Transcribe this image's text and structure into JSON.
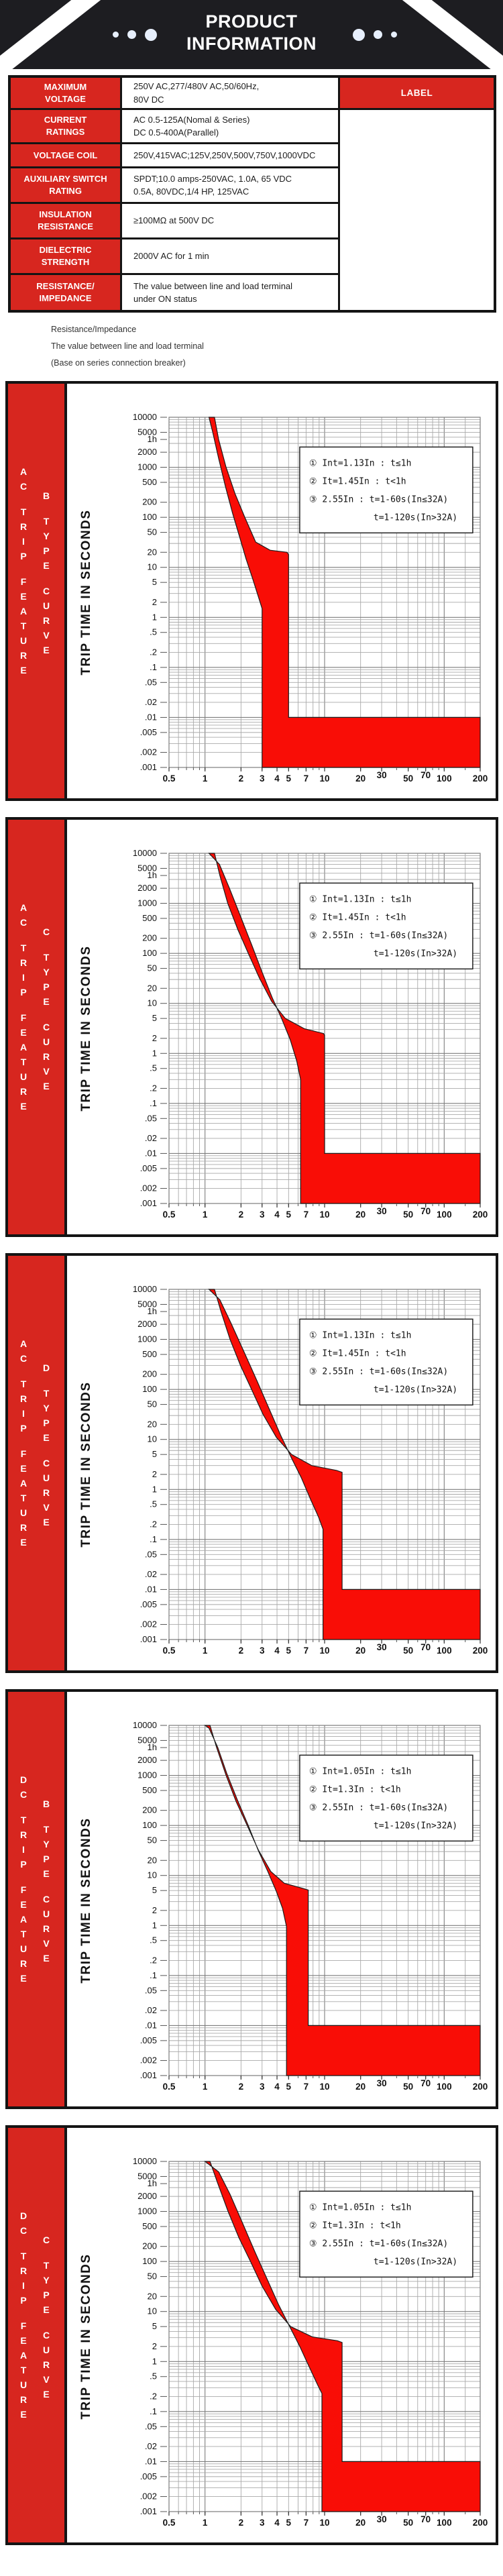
{
  "header": {
    "title_line1": "PRODUCT",
    "title_line2": "INFORMATION"
  },
  "colors": {
    "accent_red": "#d7261f",
    "chart_band_red": "#f90d06",
    "header_black": "#1d1d21",
    "dot_blue": "#e7effc"
  },
  "spec_table": {
    "label_header": "LABEL",
    "rows": [
      {
        "label_lines": [
          "MAXIMUM",
          "VOLTAGE"
        ],
        "value_lines": [
          "250V AC,277/480V AC,50/60Hz,",
          "80V DC"
        ]
      },
      {
        "label_lines": [
          "CURRENT",
          "RATINGS"
        ],
        "value_lines": [
          "AC 0.5-125A(Nomal & Series)",
          "DC 0.5-400A(Parallel)"
        ]
      },
      {
        "label_lines": [
          "VOLTAGE COIL"
        ],
        "value_lines": [
          "250V,415VAC;125V,250V,500V,750V,1000VDC"
        ]
      },
      {
        "label_lines": [
          "AUXILIARY SWITCH",
          "RATING"
        ],
        "value_lines": [
          "SPDT;10.0 amps-250VAC, 1.0A, 65 VDC",
          "0.5A, 80VDC,1/4 HP, 125VAC"
        ]
      },
      {
        "label_lines": [
          "INSULATION",
          "RESISTANCE"
        ],
        "value_lines": [
          "≥100MΩ at 500V DC"
        ]
      },
      {
        "label_lines": [
          "DIELECTRIC",
          "STRENGTH"
        ],
        "value_lines": [
          "2000V AC for 1 min"
        ]
      },
      {
        "label_lines": [
          "RESISTANCE/",
          "IMPEDANCE"
        ],
        "value_lines": [
          "The value between line and load terminal",
          "under ON status"
        ]
      }
    ]
  },
  "notes": [
    "Resistance/Impedance",
    "The value between line and load terminal",
    "(Base on series connection breaker)"
  ],
  "chart_data": [
    {
      "id": "ac-b-type",
      "type": "area",
      "sidebar": {
        "feature": [
          "AC",
          "TRIP",
          "FEATURE"
        ],
        "curve": [
          "B",
          "TYPE",
          "CURVE"
        ]
      },
      "ylabel": "TRIP TIME IN SECONDS",
      "xlabel": "",
      "xscale": "log",
      "yscale": "log",
      "xlim": [
        0.5,
        200
      ],
      "ylim": [
        0.001,
        10000
      ],
      "x_tick_values": [
        0.5,
        1,
        2,
        3,
        4,
        5,
        7,
        10,
        20,
        30,
        50,
        70,
        100,
        200
      ],
      "x_tick_labels": [
        "0.5",
        "1",
        "2",
        "3",
        "4",
        "5",
        "7",
        "10",
        "20",
        "30",
        "50",
        "70",
        "100",
        "200"
      ],
      "y_tick_values": [
        10000,
        5000,
        3600,
        2000,
        1000,
        500,
        200,
        100,
        50,
        20,
        10,
        5,
        2,
        1,
        0.5,
        0.2,
        0.1,
        0.05,
        0.02,
        0.01,
        0.005,
        0.002,
        0.001
      ],
      "y_tick_labels": [
        "10000",
        "5000",
        "1h",
        "2000",
        "1000",
        "500",
        "200",
        "100",
        "50",
        "20",
        "10",
        "5",
        "2",
        "1",
        ".5",
        ".2",
        ".1",
        ".05",
        ".02",
        ".01",
        ".005",
        ".002",
        ".001"
      ],
      "legend": [
        "①  Int=1.13In : t≤1h",
        "②  It=1.45In : t<1h",
        "③  2.55In : t=1-60s(In≤32A)",
        "t=1-120s(In>32A)"
      ],
      "band": [
        [
          1.08,
          10000
        ],
        [
          1.2,
          10000
        ],
        [
          1.3,
          3600
        ],
        [
          1.5,
          1000
        ],
        [
          1.78,
          300
        ],
        [
          2.15,
          100
        ],
        [
          2.65,
          32
        ],
        [
          3.5,
          22
        ],
        [
          4.85,
          20
        ],
        [
          5.0,
          18
        ],
        [
          5.0,
          0.01
        ],
        [
          200,
          0.01
        ],
        [
          200,
          0.001
        ],
        [
          3.0,
          0.001
        ],
        [
          3.0,
          1.5
        ],
        [
          2.82,
          2.4
        ],
        [
          2.5,
          6
        ],
        [
          2.2,
          15
        ],
        [
          1.95,
          40
        ],
        [
          1.7,
          120
        ],
        [
          1.48,
          420
        ],
        [
          1.3,
          1500
        ],
        [
          1.16,
          5000
        ],
        [
          1.08,
          10000
        ]
      ]
    },
    {
      "id": "ac-c-type",
      "type": "area",
      "sidebar": {
        "feature": [
          "AC",
          "TRIP",
          "FEATURE"
        ],
        "curve": [
          "C",
          "TYPE",
          "CURVE"
        ]
      },
      "ylabel": "TRIP TIME IN SECONDS",
      "xlabel": "",
      "xscale": "log",
      "yscale": "log",
      "xlim": [
        0.5,
        200
      ],
      "ylim": [
        0.001,
        10000
      ],
      "x_tick_values": [
        0.5,
        1,
        2,
        3,
        4,
        5,
        7,
        10,
        20,
        30,
        50,
        70,
        100,
        200
      ],
      "x_tick_labels": [
        "0.5",
        "1",
        "2",
        "3",
        "4",
        "5",
        "7",
        "10",
        "20",
        "30",
        "50",
        "70",
        "100",
        "200"
      ],
      "y_tick_values": [
        10000,
        5000,
        3600,
        2000,
        1000,
        500,
        200,
        100,
        50,
        20,
        10,
        5,
        2,
        1,
        0.5,
        0.2,
        0.1,
        0.05,
        0.02,
        0.01,
        0.005,
        0.002,
        0.001
      ],
      "y_tick_labels": [
        "10000",
        "5000",
        "1h",
        "2000",
        "1000",
        "500",
        "200",
        "100",
        "50",
        "20",
        "10",
        "5",
        "2",
        "1",
        ".5",
        ".2",
        ".1",
        ".05",
        ".02",
        ".01",
        ".005",
        ".002",
        ".001"
      ],
      "legend": [
        "①  Int=1.13In : t≤1h",
        "②  It=1.45In : t<1h",
        "③  2.55In : t=1-60s(In≤32A)",
        "t=1-120s(In>32A)"
      ],
      "band": [
        [
          1.08,
          10000
        ],
        [
          1.2,
          10000
        ],
        [
          1.33,
          3600
        ],
        [
          1.55,
          1000
        ],
        [
          1.88,
          300
        ],
        [
          2.3,
          100
        ],
        [
          2.85,
          32
        ],
        [
          3.6,
          11
        ],
        [
          4.7,
          5
        ],
        [
          6.8,
          3.1
        ],
        [
          9.8,
          2.5
        ],
        [
          10,
          2.3
        ],
        [
          10,
          0.01
        ],
        [
          200,
          0.01
        ],
        [
          200,
          0.001
        ],
        [
          6.3,
          0.001
        ],
        [
          6.3,
          0.3
        ],
        [
          5.85,
          0.7
        ],
        [
          5.15,
          1.9
        ],
        [
          4.4,
          4.8
        ],
        [
          3.65,
          13
        ],
        [
          3.0,
          42
        ],
        [
          2.45,
          150
        ],
        [
          1.98,
          550
        ],
        [
          1.6,
          2000
        ],
        [
          1.32,
          6000
        ],
        [
          1.08,
          10000
        ]
      ]
    },
    {
      "id": "ac-d-type",
      "type": "area",
      "sidebar": {
        "feature": [
          "AC",
          "TRIP",
          "FEATURE"
        ],
        "curve": [
          "D",
          "TYPE",
          "CURVE"
        ]
      },
      "ylabel": "TRIP TIME IN SECONDS",
      "xlabel": "",
      "xscale": "log",
      "yscale": "log",
      "xlim": [
        0.5,
        200
      ],
      "ylim": [
        0.001,
        10000
      ],
      "x_tick_values": [
        0.5,
        1,
        2,
        3,
        4,
        5,
        7,
        10,
        20,
        30,
        50,
        70,
        100,
        200
      ],
      "x_tick_labels": [
        "0.5",
        "1",
        "2",
        "3",
        "4",
        "5",
        "7",
        "10",
        "20",
        "30",
        "50",
        "70",
        "100",
        "200"
      ],
      "y_tick_values": [
        10000,
        5000,
        3600,
        2000,
        1000,
        500,
        200,
        100,
        50,
        20,
        10,
        5,
        2,
        1,
        0.5,
        0.2,
        0.1,
        0.05,
        0.02,
        0.01,
        0.005,
        0.002,
        0.001
      ],
      "y_tick_labels": [
        "10000",
        "5000",
        "1h",
        "2000",
        "1000",
        "500",
        "200",
        "100",
        "50",
        "20",
        "10",
        "5",
        "2",
        "1",
        ".5",
        ".2",
        ".1",
        ".05",
        ".02",
        ".01",
        ".005",
        ".002",
        ".001"
      ],
      "legend": [
        "①  Int=1.13In : t≤1h",
        "②  It=1.45In : t<1h",
        "③  2.55In : t=1-60s(In≤32A)",
        "t=1-120s(In>32A)"
      ],
      "band": [
        [
          1.08,
          10000
        ],
        [
          1.2,
          10000
        ],
        [
          1.36,
          3600
        ],
        [
          1.62,
          1000
        ],
        [
          1.98,
          300
        ],
        [
          2.45,
          100
        ],
        [
          3.05,
          32
        ],
        [
          3.95,
          11
        ],
        [
          5.3,
          5
        ],
        [
          7.8,
          3.0
        ],
        [
          12.6,
          2.4
        ],
        [
          14,
          2.2
        ],
        [
          14,
          0.01
        ],
        [
          200,
          0.01
        ],
        [
          200,
          0.001
        ],
        [
          9.7,
          0.001
        ],
        [
          9.7,
          0.16
        ],
        [
          8.9,
          0.28
        ],
        [
          7.6,
          0.65
        ],
        [
          6.4,
          1.7
        ],
        [
          5.3,
          4.2
        ],
        [
          4.3,
          12
        ],
        [
          3.45,
          40
        ],
        [
          2.75,
          140
        ],
        [
          2.15,
          520
        ],
        [
          1.65,
          2100
        ],
        [
          1.33,
          6200
        ],
        [
          1.08,
          10000
        ]
      ]
    },
    {
      "id": "dc-b-type",
      "type": "area",
      "sidebar": {
        "feature": [
          "DC",
          "TRIP",
          "FEATURE"
        ],
        "curve": [
          "B",
          "TYPE",
          "CURVE"
        ]
      },
      "ylabel": "TRIP TIME IN SECONDS",
      "xlabel": "",
      "xscale": "log",
      "yscale": "log",
      "xlim": [
        0.5,
        200
      ],
      "ylim": [
        0.001,
        10000
      ],
      "x_tick_values": [
        0.5,
        1,
        2,
        3,
        4,
        5,
        7,
        10,
        20,
        30,
        50,
        70,
        100,
        200
      ],
      "x_tick_labels": [
        "0.5",
        "1",
        "2",
        "3",
        "4",
        "5",
        "7",
        "10",
        "20",
        "30",
        "50",
        "70",
        "100",
        "200"
      ],
      "y_tick_values": [
        10000,
        5000,
        3600,
        2000,
        1000,
        500,
        200,
        100,
        50,
        20,
        10,
        5,
        2,
        1,
        0.5,
        0.2,
        0.1,
        0.05,
        0.02,
        0.01,
        0.005,
        0.002,
        0.001
      ],
      "y_tick_labels": [
        "10000",
        "5000",
        "1h",
        "2000",
        "1000",
        "500",
        "200",
        "100",
        "50",
        "20",
        "10",
        "5",
        "2",
        "1",
        ".5",
        ".2",
        ".1",
        ".05",
        ".02",
        ".01",
        ".005",
        ".002",
        ".001"
      ],
      "legend": [
        "①  Int=1.05In : t≤1h",
        "②  It=1.3In : t<1h",
        "③  2.55In : t=1-60s(In≤32A)",
        "t=1-120s(In>32A)"
      ],
      "band": [
        [
          1.0,
          10000
        ],
        [
          1.1,
          10000
        ],
        [
          1.25,
          3600
        ],
        [
          1.5,
          1000
        ],
        [
          1.82,
          300
        ],
        [
          2.25,
          100
        ],
        [
          2.8,
          32
        ],
        [
          3.55,
          12
        ],
        [
          4.6,
          7
        ],
        [
          6.6,
          5.5
        ],
        [
          7.3,
          5.1
        ],
        [
          7.3,
          0.01
        ],
        [
          200,
          0.01
        ],
        [
          200,
          0.001
        ],
        [
          4.8,
          0.001
        ],
        [
          4.8,
          0.95
        ],
        [
          4.45,
          2.2
        ],
        [
          3.95,
          4.8
        ],
        [
          3.35,
          12
        ],
        [
          2.78,
          32
        ],
        [
          2.28,
          105
        ],
        [
          1.86,
          330
        ],
        [
          1.52,
          1100
        ],
        [
          1.28,
          3600
        ],
        [
          1.08,
          8800
        ],
        [
          1.0,
          10000
        ]
      ]
    },
    {
      "id": "dc-c-type",
      "type": "area",
      "sidebar": {
        "feature": [
          "DC",
          "TRIP",
          "FEATURE"
        ],
        "curve": [
          "C",
          "TYPE",
          "CURVE"
        ]
      },
      "ylabel": "TRIP TIME IN SECONDS",
      "xlabel": "",
      "xscale": "log",
      "yscale": "log",
      "xlim": [
        0.5,
        200
      ],
      "ylim": [
        0.001,
        10000
      ],
      "x_tick_values": [
        0.5,
        1,
        2,
        3,
        4,
        5,
        7,
        10,
        20,
        30,
        50,
        70,
        100,
        200
      ],
      "x_tick_labels": [
        "0.5",
        "1",
        "2",
        "3",
        "4",
        "5",
        "7",
        "10",
        "20",
        "30",
        "50",
        "70",
        "100",
        "200"
      ],
      "y_tick_values": [
        10000,
        5000,
        3600,
        2000,
        1000,
        500,
        200,
        100,
        50,
        20,
        10,
        5,
        2,
        1,
        0.5,
        0.2,
        0.1,
        0.05,
        0.02,
        0.01,
        0.005,
        0.002,
        0.001
      ],
      "y_tick_labels": [
        "10000",
        "5000",
        "1h",
        "2000",
        "1000",
        "500",
        "200",
        "100",
        "50",
        "20",
        "10",
        "5",
        "2",
        "1",
        ".5",
        ".2",
        ".1",
        ".05",
        ".02",
        ".01",
        ".005",
        ".002",
        ".001"
      ],
      "legend": [
        "①  Int=1.05In : t≤1h",
        "②  It=1.3In : t<1h",
        "③  2.55In : t=1-60s(In≤32A)",
        "t=1-120s(In>32A)"
      ],
      "band": [
        [
          1.0,
          10000
        ],
        [
          1.1,
          10000
        ],
        [
          1.28,
          3600
        ],
        [
          1.56,
          1000
        ],
        [
          1.92,
          300
        ],
        [
          2.4,
          100
        ],
        [
          3.0,
          32
        ],
        [
          3.9,
          11
        ],
        [
          5.2,
          5
        ],
        [
          7.9,
          3.1
        ],
        [
          12.8,
          2.6
        ],
        [
          14,
          2.4
        ],
        [
          14,
          0.01
        ],
        [
          200,
          0.01
        ],
        [
          200,
          0.001
        ],
        [
          9.5,
          0.001
        ],
        [
          9.5,
          0.23
        ],
        [
          8.7,
          0.35
        ],
        [
          7.4,
          0.8
        ],
        [
          6.2,
          2.0
        ],
        [
          5.1,
          5
        ],
        [
          4.1,
          14
        ],
        [
          3.3,
          45
        ],
        [
          2.6,
          160
        ],
        [
          2.05,
          600
        ],
        [
          1.62,
          2200
        ],
        [
          1.3,
          6200
        ],
        [
          1.0,
          10000
        ]
      ]
    }
  ]
}
